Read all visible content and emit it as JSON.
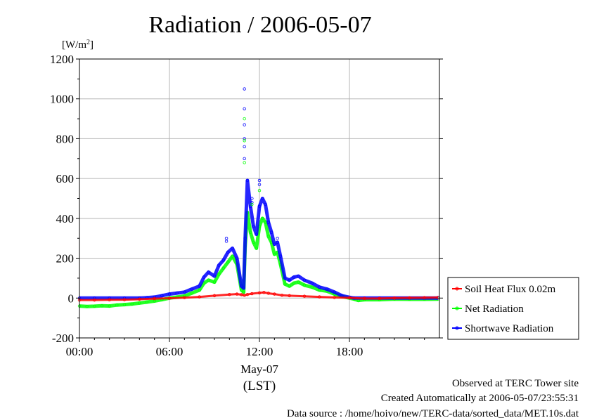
{
  "chart_data": {
    "type": "line",
    "title": "Radiation / 2006-05-07",
    "ylabel": "[W/m²]",
    "ylabel_base": "[W/m",
    "ylabel_sup": "2",
    "ylabel_close": "]",
    "xlabel_date": "May-07",
    "xlabel_unit": "(LST)",
    "ylim": [
      -200,
      1200
    ],
    "xlim": [
      0,
      24
    ],
    "yticks": [
      -200,
      0,
      200,
      400,
      600,
      800,
      1000,
      1200
    ],
    "ytick_labels": [
      "-200",
      "0",
      "200",
      "400",
      "600",
      "800",
      "1000",
      "1200"
    ],
    "xticks": [
      0,
      6,
      12,
      18
    ],
    "xtick_labels": [
      "00:00",
      "06:00",
      "12:00",
      "18:00"
    ],
    "grid": true,
    "legend_position": "right",
    "series": [
      {
        "name": "Soil Heat Flux 0.02m",
        "color": "#ff0000",
        "x": [
          0,
          1,
          2,
          3,
          4,
          5,
          6,
          7,
          8,
          9,
          10,
          10.5,
          10.8,
          11,
          11.2,
          11.5,
          12,
          12.3,
          12.6,
          13,
          13.5,
          14,
          15,
          16,
          17,
          18,
          19,
          20,
          21,
          22,
          23,
          23.9
        ],
        "y": [
          -10,
          -10,
          -9,
          -8,
          -6,
          -3,
          -1,
          2,
          6,
          12,
          18,
          20,
          17,
          14,
          18,
          22,
          26,
          28,
          24,
          20,
          14,
          12,
          9,
          6,
          3,
          1,
          -2,
          -2,
          0,
          1,
          2,
          3
        ]
      },
      {
        "name": "Net Radiation",
        "color": "#00ff00",
        "x": [
          0,
          0.5,
          1,
          1.5,
          2,
          2.5,
          3,
          3.5,
          4,
          4.5,
          5,
          5.5,
          6,
          6.5,
          7,
          7.5,
          8,
          8.3,
          8.6,
          9,
          9.3,
          9.6,
          9.9,
          10.2,
          10.5,
          10.8,
          10.95,
          11.05,
          11.2,
          11.4,
          11.6,
          11.8,
          12,
          12.2,
          12.4,
          12.6,
          12.8,
          13,
          13.2,
          13.4,
          13.7,
          14,
          14.3,
          14.6,
          15,
          15.5,
          16,
          16.5,
          17,
          17.5,
          18,
          18.3,
          18.6,
          19,
          20,
          21,
          22,
          23,
          23.9
        ],
        "y": [
          -40,
          -42,
          -41,
          -39,
          -40,
          -35,
          -33,
          -30,
          -25,
          -20,
          -15,
          -8,
          0,
          5,
          10,
          25,
          40,
          75,
          90,
          80,
          120,
          150,
          180,
          210,
          170,
          40,
          30,
          260,
          430,
          330,
          280,
          250,
          360,
          400,
          380,
          310,
          280,
          220,
          230,
          170,
          70,
          60,
          75,
          80,
          65,
          55,
          40,
          35,
          20,
          8,
          0,
          -5,
          -12,
          -8,
          -8,
          -5,
          -6,
          -6,
          -5
        ]
      },
      {
        "name": "Shortwave Radiation",
        "color": "#0000ff",
        "x": [
          0,
          1,
          2,
          3,
          4,
          4.5,
          5,
          5.5,
          6,
          6.5,
          7,
          7.5,
          8,
          8.3,
          8.6,
          9,
          9.3,
          9.6,
          9.9,
          10.2,
          10.5,
          10.8,
          10.95,
          11.05,
          11.2,
          11.4,
          11.6,
          11.8,
          12,
          12.2,
          12.4,
          12.6,
          12.8,
          13,
          13.2,
          13.4,
          13.7,
          14,
          14.3,
          14.6,
          15,
          15.5,
          16,
          16.5,
          17,
          17.5,
          18,
          18.3,
          19,
          20,
          21,
          22,
          23,
          23.9
        ],
        "y": [
          0,
          0,
          0,
          0,
          0,
          2,
          5,
          12,
          20,
          25,
          30,
          45,
          60,
          105,
          130,
          110,
          165,
          190,
          230,
          250,
          200,
          60,
          50,
          300,
          590,
          460,
          360,
          320,
          460,
          500,
          470,
          380,
          330,
          270,
          280,
          210,
          100,
          90,
          105,
          110,
          90,
          75,
          55,
          45,
          30,
          12,
          4,
          0,
          0,
          0,
          0,
          0,
          0,
          0
        ]
      }
    ],
    "spikes": [
      {
        "x": 11.0,
        "values": [
          1050,
          950,
          900,
          870,
          800,
          790,
          760,
          700,
          680
        ]
      },
      {
        "x": 12.0,
        "values": [
          590,
          570,
          540
        ]
      },
      {
        "x": 11.5,
        "values": [
          500,
          480,
          470
        ]
      },
      {
        "x": 9.8,
        "values": [
          300,
          285
        ]
      },
      {
        "x": 13.2,
        "values": [
          300,
          280
        ]
      }
    ],
    "notes": {
      "line1": "Observed at TERC Tower site",
      "line2": "Created Automatically at 2006-05-07/23:55:31",
      "line3": "Data source : /home/hoivo/new/TERC-data/sorted_data/MET.10s.dat"
    }
  }
}
